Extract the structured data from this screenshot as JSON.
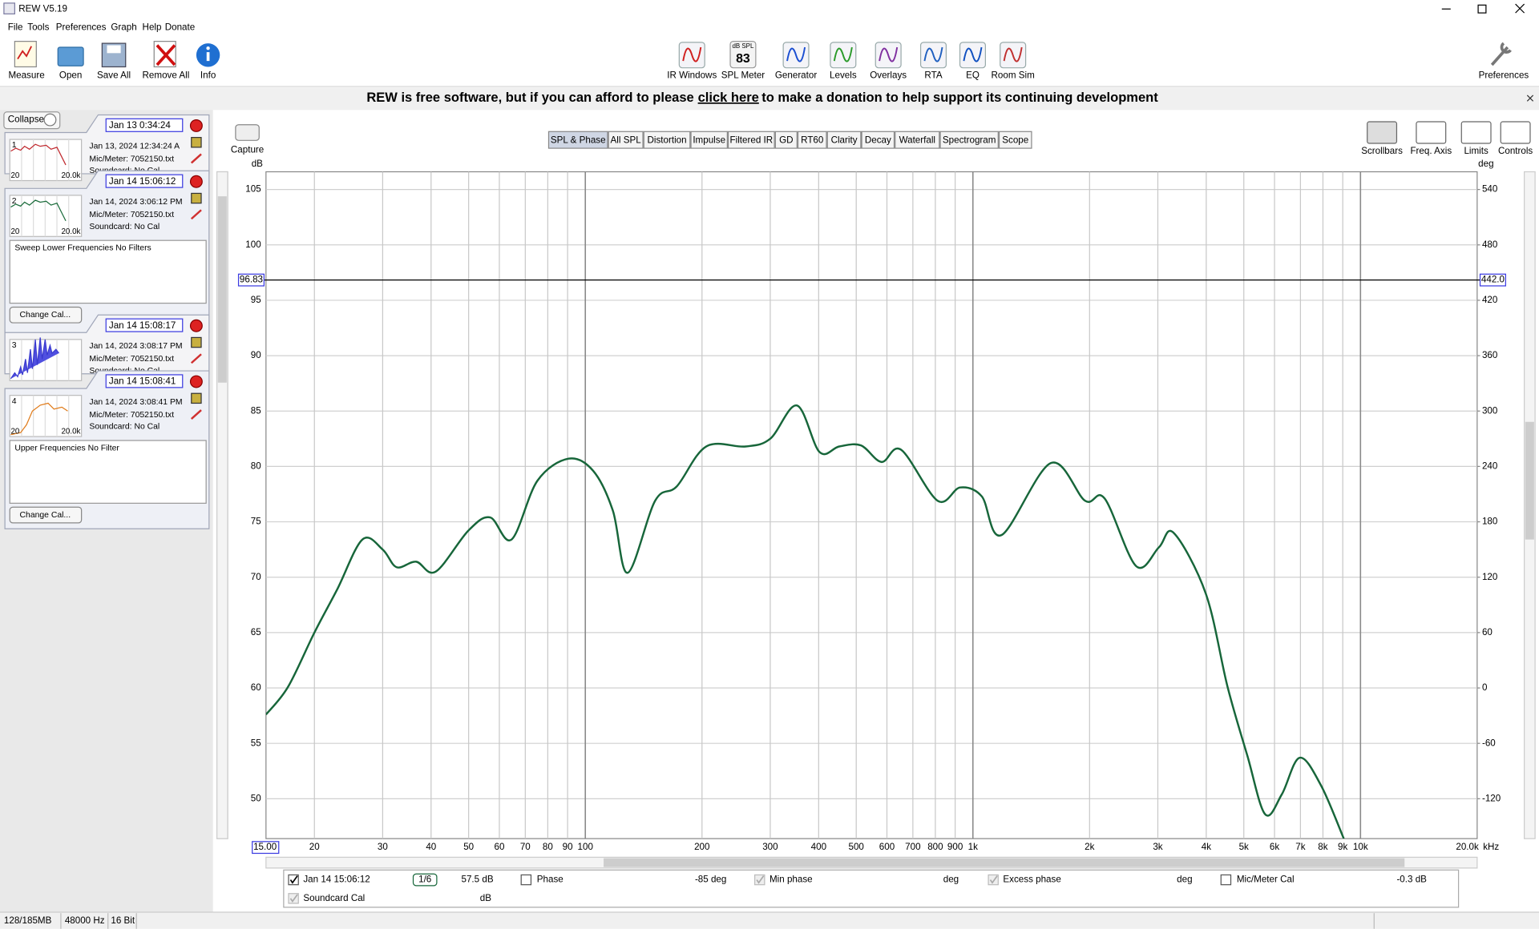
{
  "window": {
    "title": "REW V5.19"
  },
  "menu": [
    "File",
    "Tools",
    "Preferences",
    "Graph",
    "Help",
    "Donate"
  ],
  "toolbar": {
    "left": [
      "Measure",
      "Open",
      "Save All",
      "Remove All",
      "Info"
    ],
    "center": [
      "IR Windows",
      "SPL Meter",
      "Generator",
      "Levels",
      "Overlays",
      "RTA",
      "EQ",
      "Room Sim"
    ],
    "right": [
      "Preferences"
    ],
    "spl_meter": {
      "unit": "dB SPL",
      "reading": 83
    }
  },
  "banner": {
    "before": "REW is free software, but if you can afford to please",
    "link": "click here",
    "after": "to make a donation to help support its continuing development"
  },
  "measurements_panel": {
    "collapse": "Collapse",
    "measurements": [
      {
        "index": 1,
        "date_box": "Jan 13 0:34:24",
        "date": "Jan 13, 2024 12:34:24 A",
        "mic": "Mic/Meter: 7052150.txt",
        "soundcard": "Soundcard: No Cal",
        "color": "#c0282d",
        "thumb_labels": [
          "20",
          "20.0k"
        ]
      },
      {
        "index": 2,
        "date_box": "Jan 14 15:06:12",
        "date": "Jan 14, 2024 3:06:12 PM",
        "mic": "Mic/Meter: 7052150.txt",
        "soundcard": "Soundcard: No Cal",
        "color": "#1a6b3a",
        "thumb_labels": [
          "20",
          "20.0k"
        ],
        "notes": "Sweep Lower Frequencies No Filters",
        "button": "Change Cal..."
      },
      {
        "index": 3,
        "date_box": "Jan 14 15:08:17",
        "date": "Jan 14, 2024 3:08:17 PM",
        "mic": "Mic/Meter: 7052150.txt",
        "soundcard": "Soundcard: No Cal",
        "color": "#3a3acf"
      },
      {
        "index": 4,
        "date_box": "Jan 14 15:08:41",
        "date": "Jan 14, 2024 3:08:41 PM",
        "mic": "Mic/Meter: 7052150.txt",
        "soundcard": "Soundcard: No Cal",
        "color": "#e07b1a",
        "thumb_labels": [
          "20",
          "20.0k"
        ],
        "notes": "Upper Frequencies No Filter",
        "button": "Change Cal..."
      }
    ]
  },
  "graph_tabs": [
    "SPL & Phase",
    "All SPL",
    "Distortion",
    "Impulse",
    "Filtered IR",
    "GD",
    "RT60",
    "Clarity",
    "Decay",
    "Waterfall",
    "Spectrogram",
    "Scope"
  ],
  "active_tab": 0,
  "graph_tools": {
    "capture": "Capture",
    "right": [
      "Scrollbars",
      "Freq. Axis",
      "Limits",
      "Controls"
    ]
  },
  "chart": {
    "type": "line",
    "log_x": true,
    "grid": true,
    "y_unit": "dB",
    "y2_unit": "deg",
    "x_unit": "kHz",
    "xlim": [
      15,
      20000
    ],
    "x_range_labels": [
      "15.00",
      "20.0k"
    ],
    "ylim": [
      46.4,
      106.6
    ],
    "y2lim": [
      -163.2,
      559.2
    ],
    "xticks": [
      20,
      30,
      40,
      50,
      60,
      70,
      80,
      90,
      100,
      200,
      300,
      400,
      500,
      600,
      700,
      800,
      900,
      {
        "value": 1000,
        "label": "1k"
      },
      {
        "value": 2000,
        "label": "2k"
      },
      {
        "value": 3000,
        "label": "3k"
      },
      {
        "value": 4000,
        "label": "4k"
      },
      {
        "value": 5000,
        "label": "5k"
      },
      {
        "value": 6000,
        "label": "6k"
      },
      {
        "value": 7000,
        "label": "7k"
      },
      {
        "value": 8000,
        "label": "8k"
      },
      {
        "value": 9000,
        "label": "9k"
      },
      {
        "value": 10000,
        "label": "10k"
      }
    ],
    "yticks": [
      50,
      55,
      60,
      65,
      70,
      75,
      80,
      85,
      90,
      95,
      100,
      105
    ],
    "y2ticks": [
      -120,
      -60,
      0,
      60,
      120,
      180,
      240,
      300,
      360,
      420,
      480,
      540
    ],
    "cursor_db": 96.83,
    "cursor_deg": {
      "value": 442,
      "label": "442.0"
    },
    "series": [
      {
        "name": "Jan 14 15:06:12",
        "color": "#17663a",
        "x": [
          15,
          17.1,
          20,
          22.9,
          26.6,
          30,
          32.6,
          36.6,
          41.1,
          49.9,
          56.8,
          64.5,
          75.2,
          90.5,
          104.8,
          117.8,
          128.6,
          151.4,
          172.2,
          205,
          259,
          300,
          351.6,
          402,
          452,
          514,
          581,
          653,
          811,
          927,
          1054,
          1185,
          1588,
          1947,
          2188,
          2637,
          3020,
          3296,
          3991,
          4540,
          5105,
          5675,
          6267,
          6966,
          7910,
          9055
        ],
        "values": [
          57.6,
          60.1,
          65.0,
          68.9,
          73.4,
          72.5,
          70.9,
          71.4,
          70.5,
          74.2,
          75.4,
          73.4,
          78.7,
          80.7,
          79.6,
          76.0,
          70.4,
          76.9,
          78.2,
          81.8,
          81.8,
          82.5,
          85.5,
          81.3,
          81.8,
          81.9,
          80.4,
          81.5,
          76.9,
          78.1,
          77.3,
          73.8,
          80.3,
          76.9,
          77.1,
          71.0,
          72.7,
          74.0,
          68.5,
          60.1,
          53.9,
          48.6,
          50.4,
          53.7,
          51.2,
          46.4
        ]
      }
    ]
  },
  "legend_row": {
    "smoothing": "1/6",
    "level": "57.5 dB",
    "phase": "Phase",
    "phase_value": "-85 deg",
    "min_phase": "Min phase",
    "min_phase_unit": "deg",
    "excess_phase": "Excess phase",
    "excess_phase_unit": "deg",
    "mic_cal": "Mic/Meter Cal",
    "mic_cal_value": "-0.3 dB",
    "soundcard_cal": "Soundcard Cal",
    "soundcard_cal_unit": "dB"
  },
  "status": [
    "128/185MB",
    "48000 Hz",
    "16 Bit"
  ]
}
